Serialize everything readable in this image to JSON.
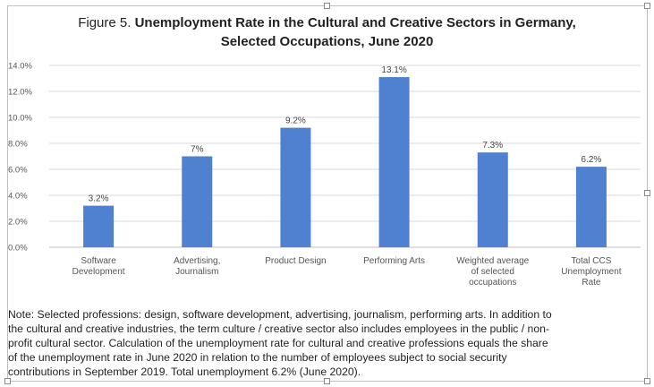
{
  "figure": {
    "prefix": "Figure 5. ",
    "title_line1": "Unemployment Rate in the Cultural and Creative Sectors in Germany,",
    "title_line2": "Selected Occupations, June 2020"
  },
  "chart_data": {
    "type": "bar",
    "categories": [
      [
        "Software",
        "Development"
      ],
      [
        "Advertising,",
        "Journalism"
      ],
      [
        "Product Design"
      ],
      [
        "Performing Arts"
      ],
      [
        "Weighted average",
        "of selected",
        "occupations"
      ],
      [
        "Total CCS",
        "Unemployment",
        "Rate"
      ]
    ],
    "values": [
      3.2,
      7,
      9.2,
      13.1,
      7.3,
      6.2
    ],
    "data_labels": [
      "3.2%",
      "7%",
      "9.2%",
      "13.1%",
      "7.3%",
      "6.2%"
    ],
    "y_ticks": [
      "0.0%",
      "2.0%",
      "4.0%",
      "6.0%",
      "8.0%",
      "10.0%",
      "12.0%",
      "14.0%"
    ],
    "ylim": [
      0,
      14
    ],
    "grid": true,
    "bar_color": "#4f81d0"
  },
  "note": [
    "Note: Selected professions: design, software development, advertising, journalism, performing arts. In addition to",
    "the cultural and creative industries, the term culture / creative sector also includes employees in the public / non-",
    "profit cultural sector. Calculation of the unemployment rate for cultural and creative professions equals the share",
    "of the unemployment rate in June 2020 in relation to the number of employees subject to social security",
    "contributions in September 2019. Total unemployment 6.2% (June 2020)."
  ]
}
